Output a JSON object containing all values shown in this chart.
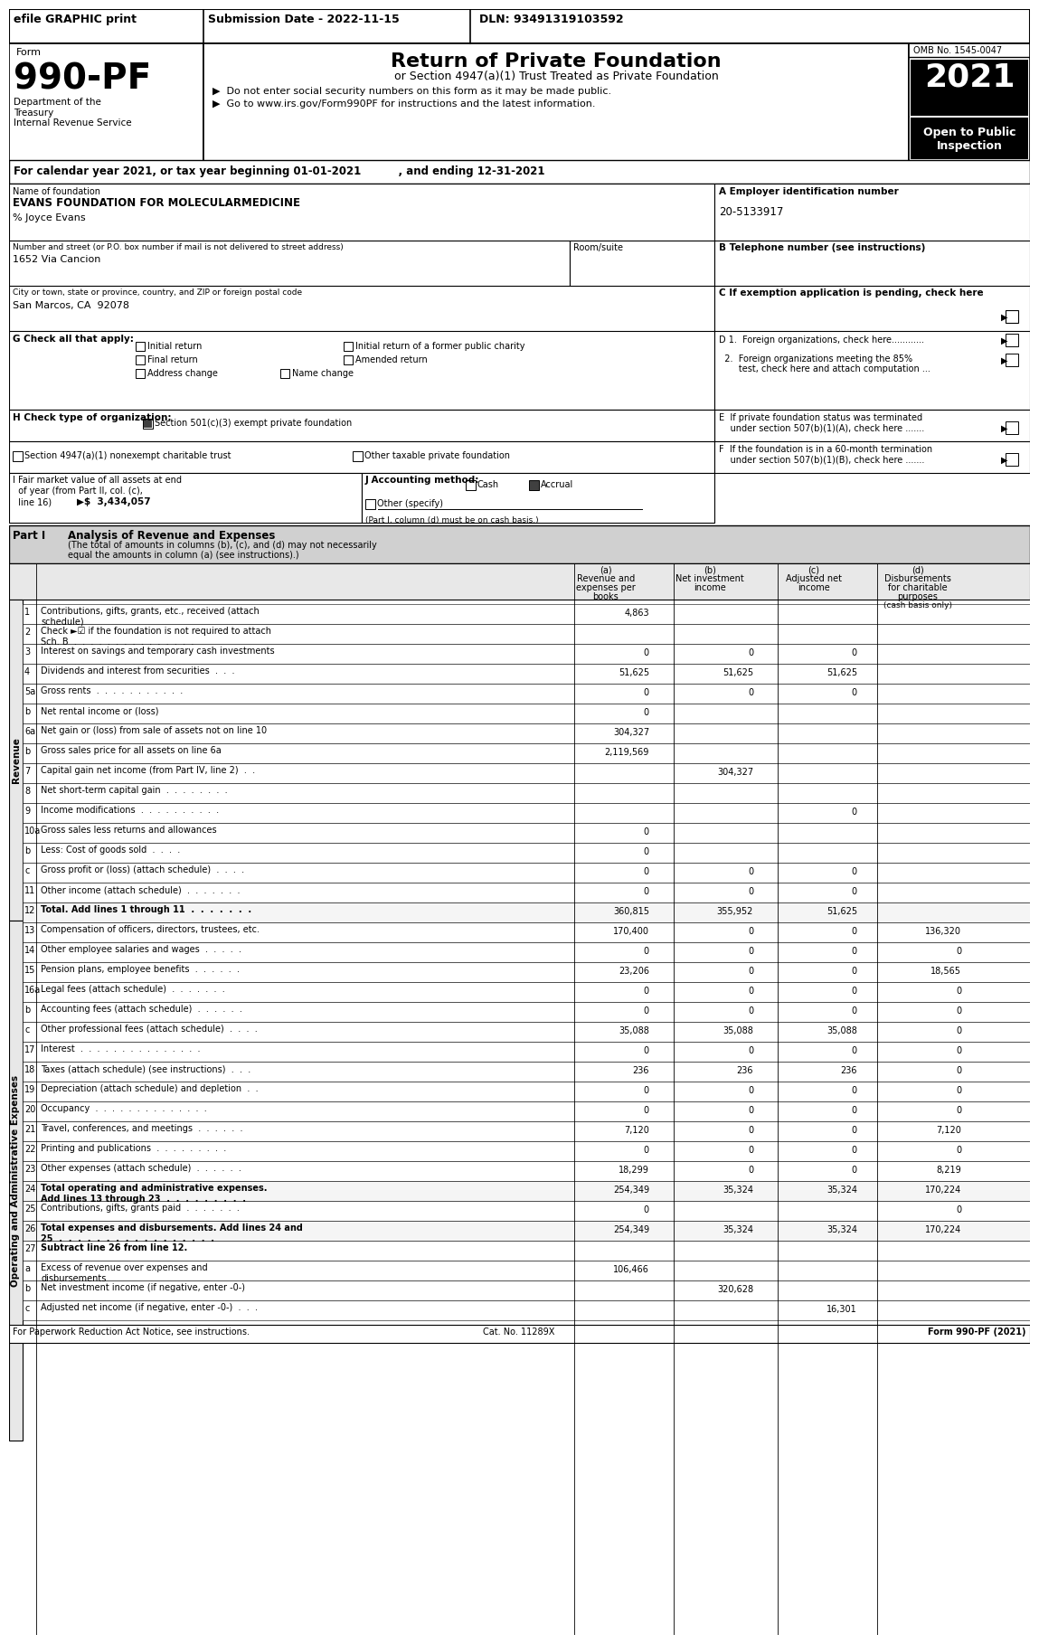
{
  "header_bar": {
    "efile_text": "efile GRAPHIC print",
    "submission_text": "Submission Date - 2022-11-15",
    "dln_text": "DLN: 93491319103592"
  },
  "form_number": "990-PF",
  "form_label": "Form",
  "title_main": "Return of Private Foundation",
  "title_sub": "or Section 4947(a)(1) Trust Treated as Private Foundation",
  "bullet1": "▶  Do not enter social security numbers on this form as it may be made public.",
  "bullet2": "▶  Go to www.irs.gov/Form990PF for instructions and the latest information.",
  "year_box": "2021",
  "open_public": "Open to Public\nInspection",
  "omb_text": "OMB No. 1545-0047",
  "dept_text": "Department of the\nTreasury\nInternal Revenue Service",
  "cal_year_line": "For calendar year 2021, or tax year beginning 01-01-2021          , and ending 12-31-2021",
  "foundation_name_label": "Name of foundation",
  "foundation_name": "EVANS FOUNDATION FOR MOLECULARMEDICINE",
  "care_of": "% Joyce Evans",
  "address_label": "Number and street (or P.O. box number if mail is not delivered to street address)",
  "address": "1652 Via Cancion",
  "room_label": "Room/suite",
  "city_label": "City or town, state or province, country, and ZIP or foreign postal code",
  "city": "San Marcos, CA  92078",
  "ein_label": "A Employer identification number",
  "ein": "20-5133917",
  "phone_label": "B Telephone number (see instructions)",
  "exempt_label": "C If exemption application is pending, check here",
  "check_g_label": "G Check all that apply:",
  "check_g_options": [
    "Initial return",
    "Initial return of a former public charity",
    "Final return",
    "Amended return",
    "Address change",
    "Name change"
  ],
  "check_h_label": "H Check type of organization:",
  "check_h_501": "Section 501(c)(3) exempt private foundation",
  "check_h_4947": "Section 4947(a)(1) nonexempt charitable trust",
  "check_h_other": "Other taxable private foundation",
  "check_i_label": "I Fair market value of all assets at end\n  of year (from Part II, col. (c),\n  line 16)",
  "check_i_value": "3,434,057",
  "check_j_label": "J Accounting method:",
  "check_j_cash": "Cash",
  "check_j_accrual": "Accrual",
  "check_j_other": "Other (specify)",
  "check_j_note": "(Part I, column (d) must be on cash basis.)",
  "check_d_label": "D 1.  Foreign organizations, check here............",
  "check_d2_label": "  2.  Foreign organizations meeting the 85%\n      test, check here and attach computation ...",
  "check_e_label": "E  If private foundation status was terminated\n    under section 507(b)(1)(A), check here .......",
  "check_f_label": "F  If the foundation is in a 60-month termination\n    under section 507(b)(1)(B), check here .......",
  "part1_title": "Part I",
  "part1_desc": "Analysis of Revenue and Expenses",
  "part1_subdesc": "(The total of amounts in columns (b), (c), and (d) may not necessarily equal the amounts in column (a) (see instructions).)",
  "col_a": "(a)\nRevenue and\nexpenses per\nbooks",
  "col_b": "(b)\nNet investment\nincome",
  "col_c": "(c)\nAdjusted net\nincome",
  "col_d": "(d)\nDisbursements\nfor charitable\npurposes\n(cash basis only)",
  "revenue_label": "Revenue",
  "opex_label": "Operating and Administrative Expenses",
  "rows": [
    {
      "num": "1",
      "label": "Contributions, gifts, grants, etc., received (attach\nschedule)",
      "a": "4,863",
      "b": "",
      "c": "",
      "d": "",
      "dots": false
    },
    {
      "num": "2",
      "label": "Check ►☑ if the foundation is not required to attach\nSch. B  .  .  .  .  .  .  .  .  .  .  .  .  .  .  .",
      "a": "",
      "b": "",
      "c": "",
      "d": "",
      "dots": false
    },
    {
      "num": "3",
      "label": "Interest on savings and temporary cash investments",
      "a": "0",
      "b": "0",
      "c": "0",
      "d": "",
      "dots": true
    },
    {
      "num": "4",
      "label": "Dividends and interest from securities  .  .  .",
      "a": "51,625",
      "b": "51,625",
      "c": "51,625",
      "d": "",
      "dots": false
    },
    {
      "num": "5a",
      "label": "Gross rents  .  .  .  .  .  .  .  .  .  .  .",
      "a": "0",
      "b": "0",
      "c": "0",
      "d": "",
      "dots": false
    },
    {
      "num": "b",
      "label": "Net rental income or (loss)",
      "a": "0",
      "b": "",
      "c": "",
      "d": "",
      "dots": false
    },
    {
      "num": "6a",
      "label": "Net gain or (loss) from sale of assets not on line 10",
      "a": "304,327",
      "b": "",
      "c": "",
      "d": "",
      "dots": false
    },
    {
      "num": "b",
      "label": "Gross sales price for all assets on line 6a",
      "a": "2,119,569",
      "b": "",
      "c": "",
      "d": "",
      "dots": false
    },
    {
      "num": "7",
      "label": "Capital gain net income (from Part IV, line 2)  .  .",
      "a": "",
      "b": "304,327",
      "c": "",
      "d": "",
      "dots": false
    },
    {
      "num": "8",
      "label": "Net short-term capital gain  .  .  .  .  .  .  .  .",
      "a": "",
      "b": "",
      "c": "",
      "d": "",
      "dots": false
    },
    {
      "num": "9",
      "label": "Income modifications  .  .  .  .  .  .  .  .  .  .",
      "a": "",
      "b": "",
      "c": "0",
      "d": "",
      "dots": false
    },
    {
      "num": "10a",
      "label": "Gross sales less returns and allowances",
      "a": "0",
      "b": "",
      "c": "",
      "d": "",
      "dots": false
    },
    {
      "num": "b",
      "label": "Less: Cost of goods sold  .  .  .  .",
      "a": "0",
      "b": "",
      "c": "",
      "d": "",
      "dots": false
    },
    {
      "num": "c",
      "label": "Gross profit or (loss) (attach schedule)  .  .  .  .",
      "a": "0",
      "b": "0",
      "c": "0",
      "d": "",
      "dots": false
    },
    {
      "num": "11",
      "label": "Other income (attach schedule)  .  .  .  .  .  .  .",
      "a": "0",
      "b": "0",
      "c": "0",
      "d": "",
      "dots": false
    },
    {
      "num": "12",
      "label": "Total. Add lines 1 through 11  .  .  .  .  .  .  .",
      "a": "360,815",
      "b": "355,952",
      "c": "51,625",
      "d": "",
      "dots": false,
      "bold": true
    },
    {
      "num": "13",
      "label": "Compensation of officers, directors, trustees, etc.",
      "a": "170,400",
      "b": "0",
      "c": "0",
      "d": "136,320",
      "dots": false
    },
    {
      "num": "14",
      "label": "Other employee salaries and wages  .  .  .  .  .",
      "a": "0",
      "b": "0",
      "c": "0",
      "d": "0",
      "dots": false
    },
    {
      "num": "15",
      "label": "Pension plans, employee benefits  .  .  .  .  .  .",
      "a": "23,206",
      "b": "0",
      "c": "0",
      "d": "18,565",
      "dots": false
    },
    {
      "num": "16a",
      "label": "Legal fees (attach schedule)  .  .  .  .  .  .  .",
      "a": "0",
      "b": "0",
      "c": "0",
      "d": "0",
      "dots": false
    },
    {
      "num": "b",
      "label": "Accounting fees (attach schedule)  .  .  .  .  .  .",
      "a": "0",
      "b": "0",
      "c": "0",
      "d": "0",
      "dots": false
    },
    {
      "num": "c",
      "label": "Other professional fees (attach schedule)  .  .  .  .",
      "a": "35,088",
      "b": "35,088",
      "c": "35,088",
      "d": "0",
      "dots": false
    },
    {
      "num": "17",
      "label": "Interest  .  .  .  .  .  .  .  .  .  .  .  .  .  .  .",
      "a": "0",
      "b": "0",
      "c": "0",
      "d": "0",
      "dots": false
    },
    {
      "num": "18",
      "label": "Taxes (attach schedule) (see instructions)  .  .  .",
      "a": "236",
      "b": "236",
      "c": "236",
      "d": "0",
      "dots": false
    },
    {
      "num": "19",
      "label": "Depreciation (attach schedule) and depletion  .  .",
      "a": "0",
      "b": "0",
      "c": "0",
      "d": "0",
      "dots": false
    },
    {
      "num": "20",
      "label": "Occupancy  .  .  .  .  .  .  .  .  .  .  .  .  .  .",
      "a": "0",
      "b": "0",
      "c": "0",
      "d": "0",
      "dots": false
    },
    {
      "num": "21",
      "label": "Travel, conferences, and meetings  .  .  .  .  .  .",
      "a": "7,120",
      "b": "0",
      "c": "0",
      "d": "7,120",
      "dots": false
    },
    {
      "num": "22",
      "label": "Printing and publications  .  .  .  .  .  .  .  .  .",
      "a": "0",
      "b": "0",
      "c": "0",
      "d": "0",
      "dots": false
    },
    {
      "num": "23",
      "label": "Other expenses (attach schedule)  .  .  .  .  .  .",
      "a": "18,299",
      "b": "0",
      "c": "0",
      "d": "8,219",
      "dots": false,
      "icon": true
    },
    {
      "num": "24",
      "label": "Total operating and administrative expenses.\nAdd lines 13 through 23  .  .  .  .  .  .  .  .  .",
      "a": "254,349",
      "b": "35,324",
      "c": "35,324",
      "d": "170,224",
      "dots": false,
      "bold": true
    },
    {
      "num": "25",
      "label": "Contributions, gifts, grants paid  .  .  .  .  .  .  .",
      "a": "0",
      "b": "",
      "c": "",
      "d": "0",
      "dots": false
    },
    {
      "num": "26",
      "label": "Total expenses and disbursements. Add lines 24 and\n25  .  .  .  .  .  .  .  .  .  .  .  .  .  .  .  .  .",
      "a": "254,349",
      "b": "35,324",
      "c": "35,324",
      "d": "170,224",
      "dots": false,
      "bold": true
    },
    {
      "num": "27",
      "label": "Subtract line 26 from line 12.",
      "a": "",
      "b": "",
      "c": "",
      "d": "",
      "dots": false,
      "bold": true,
      "header_only": true
    },
    {
      "num": "a",
      "label": "Excess of revenue over expenses and\ndisbursements",
      "a": "106,466",
      "b": "",
      "c": "",
      "d": "",
      "dots": false
    },
    {
      "num": "b",
      "label": "Net investment income (if negative, enter -0-)",
      "a": "",
      "b": "320,628",
      "c": "",
      "d": "",
      "dots": false
    },
    {
      "num": "c",
      "label": "Adjusted net income (if negative, enter -0-)  .  .  .",
      "a": "",
      "b": "",
      "c": "16,301",
      "d": "",
      "dots": false
    }
  ],
  "footer_left": "For Paperwork Reduction Act Notice, see instructions.",
  "footer_cat": "Cat. No. 11289X",
  "footer_right": "Form 990-PF (2021)"
}
